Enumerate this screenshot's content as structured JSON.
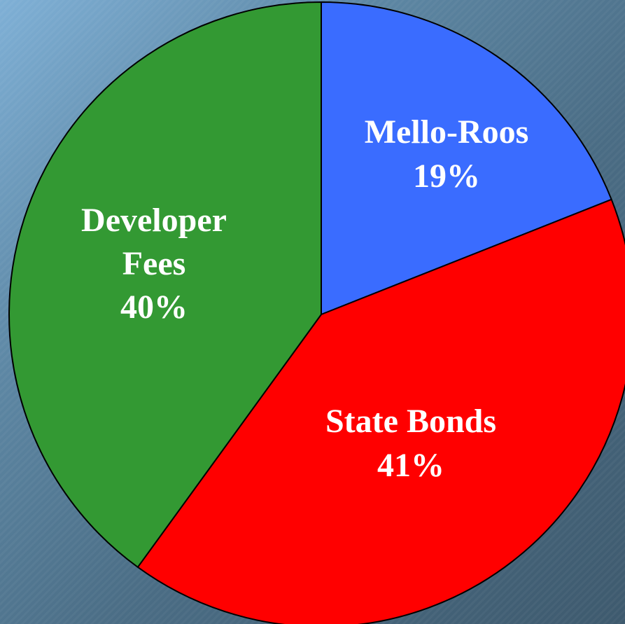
{
  "chart_data": {
    "type": "pie",
    "title": "",
    "slices": [
      {
        "label": "Mello-Roos",
        "value": 19,
        "display": "19%",
        "color": "#3a6cff"
      },
      {
        "label": "State Bonds",
        "value": 41,
        "display": "41%",
        "color": "#ff0000"
      },
      {
        "label": "Developer Fees",
        "value": 40,
        "display": "40%",
        "color": "#339933"
      }
    ],
    "start_angle_deg": 0,
    "direction": "clockwise",
    "legend": "none",
    "labels_inside_slices": true
  }
}
